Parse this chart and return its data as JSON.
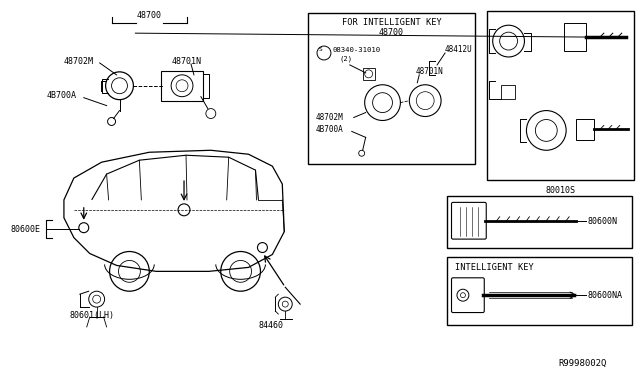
{
  "bg_color": "#ffffff",
  "line_color": "#000000",
  "fig_width": 6.4,
  "fig_height": 3.72,
  "dpi": 100,
  "watermark": "R9998002Q",
  "main_label": "48700",
  "main_sub_labels": [
    "48702M",
    "48701N",
    "4B700A"
  ],
  "ik_box_title": "FOR INTELLIGENT KEY",
  "ik_box_sub": "48700",
  "ik_box_labels": [
    "08340-31010",
    "(2)",
    "48701N",
    "48412U",
    "48702M",
    "4B700A"
  ],
  "right_box_label": "80010S",
  "key_box1_label": "80600N",
  "key_box2_title": "INTELLIGENT KEY",
  "key_box2_label": "80600NA",
  "car_label_left": "80600E",
  "car_label_bl": "80601(LH)",
  "car_label_br": "84460"
}
